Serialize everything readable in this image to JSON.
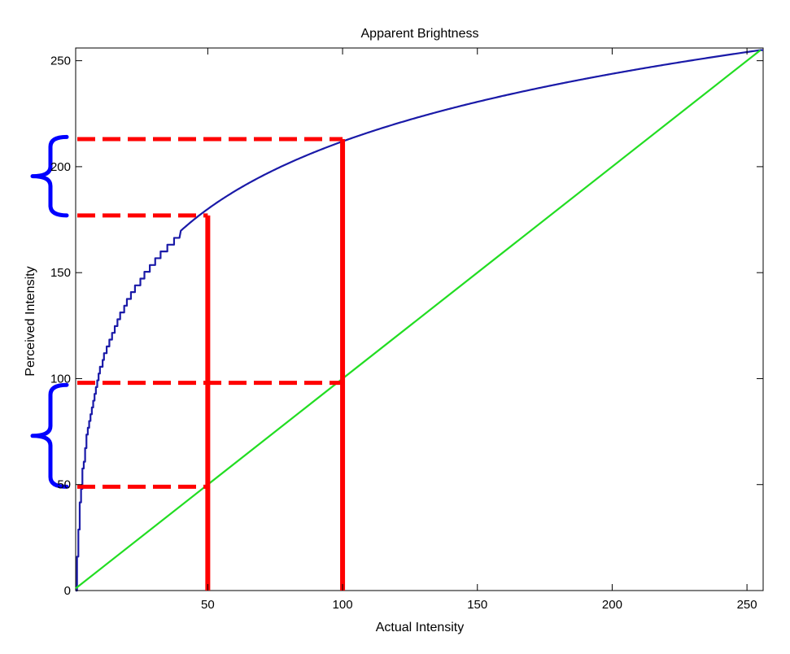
{
  "chart_data": {
    "type": "line",
    "title": "Apparent Brightness",
    "xlabel": "Actual Intensity",
    "ylabel": "Perceived Intensity",
    "xlim": [
      1,
      256
    ],
    "ylim": [
      0,
      256
    ],
    "xticks": [
      50,
      100,
      150,
      200,
      250
    ],
    "yticks": [
      0,
      50,
      100,
      150,
      200,
      250
    ],
    "grid": false,
    "series": [
      {
        "color": "#1a1aa8",
        "formula": "y = 255 * log(x) / log(255) (stepped at low x)",
        "x": [
          1,
          2,
          3,
          4,
          5,
          6,
          8,
          10,
          15,
          20,
          30,
          40,
          50,
          60,
          80,
          100,
          125,
          150,
          175,
          200,
          225,
          255
        ],
        "y": [
          0,
          32,
          51,
          64,
          74,
          83,
          96,
          106,
          125,
          138,
          157,
          170,
          180,
          189,
          202,
          212,
          222,
          230,
          237,
          243,
          248,
          255
        ]
      },
      {
        "color": "#22dd22",
        "x": [
          1,
          255
        ],
        "y": [
          1,
          255
        ]
      }
    ],
    "annotations": {
      "color": "#ff0000",
      "vertical_lines_at_x": [
        50,
        100
      ],
      "dashed_levels": [
        {
          "x_end": 50,
          "y": 49
        },
        {
          "x_end": 100,
          "y": 98
        },
        {
          "x_end": 50,
          "y": 177
        },
        {
          "x_end": 100,
          "y": 213
        }
      ],
      "brace_color": "#0000ff",
      "braces": [
        {
          "y_from": 49,
          "y_to": 97
        },
        {
          "y_from": 177,
          "y_to": 214
        }
      ]
    }
  }
}
